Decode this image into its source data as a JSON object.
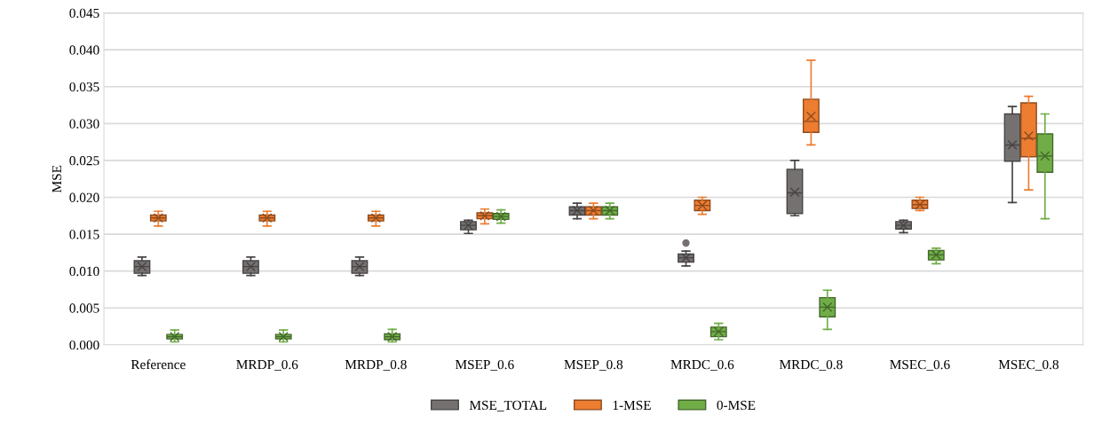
{
  "chart_data": {
    "type": "box",
    "ylabel": "MSE",
    "categories": [
      "Reference",
      "MRDP_0.6",
      "MRDP_0.8",
      "MSEP_0.6",
      "MSEP_0.8",
      "MRDC_0.6",
      "MRDC_0.8",
      "MSEC_0.6",
      "MSEC_0.8"
    ],
    "series": [
      {
        "name": "MSE_TOTAL",
        "color": "#767171",
        "boxes": [
          {
            "low": 0.0094,
            "q1": 0.0097,
            "median": 0.0106,
            "q3": 0.0114,
            "high": 0.0119,
            "mean": 0.0106
          },
          {
            "low": 0.0094,
            "q1": 0.0097,
            "median": 0.0106,
            "q3": 0.0114,
            "high": 0.0119,
            "mean": 0.0106
          },
          {
            "low": 0.0094,
            "q1": 0.0097,
            "median": 0.0106,
            "q3": 0.0114,
            "high": 0.0119,
            "mean": 0.0106
          },
          {
            "low": 0.0151,
            "q1": 0.0156,
            "median": 0.0162,
            "q3": 0.0167,
            "high": 0.0169,
            "mean": 0.0162
          },
          {
            "low": 0.0171,
            "q1": 0.0176,
            "median": 0.0182,
            "q3": 0.0187,
            "high": 0.0192,
            "mean": 0.0182
          },
          {
            "low": 0.0107,
            "q1": 0.0112,
            "median": 0.0118,
            "q3": 0.0123,
            "high": 0.0127,
            "mean": 0.0118,
            "outliers": [
              0.0138
            ]
          },
          {
            "low": 0.0175,
            "q1": 0.0178,
            "median": 0.0206,
            "q3": 0.0238,
            "high": 0.025,
            "mean": 0.0207
          },
          {
            "low": 0.0152,
            "q1": 0.0157,
            "median": 0.0162,
            "q3": 0.0167,
            "high": 0.0169,
            "mean": 0.0162
          },
          {
            "low": 0.0193,
            "q1": 0.0249,
            "median": 0.0271,
            "q3": 0.0313,
            "high": 0.0323,
            "mean": 0.0271
          }
        ]
      },
      {
        "name": "1-MSE",
        "color": "#ed7d31",
        "boxes": [
          {
            "low": 0.0161,
            "q1": 0.0168,
            "median": 0.0172,
            "q3": 0.0176,
            "high": 0.0181,
            "mean": 0.0172
          },
          {
            "low": 0.0161,
            "q1": 0.0168,
            "median": 0.0172,
            "q3": 0.0176,
            "high": 0.0181,
            "mean": 0.0172
          },
          {
            "low": 0.0161,
            "q1": 0.0168,
            "median": 0.0172,
            "q3": 0.0176,
            "high": 0.0181,
            "mean": 0.0172
          },
          {
            "low": 0.0164,
            "q1": 0.0171,
            "median": 0.0175,
            "q3": 0.0179,
            "high": 0.0184,
            "mean": 0.0175
          },
          {
            "low": 0.0171,
            "q1": 0.0176,
            "median": 0.0182,
            "q3": 0.0187,
            "high": 0.0192,
            "mean": 0.0182
          },
          {
            "low": 0.0177,
            "q1": 0.0182,
            "median": 0.0189,
            "q3": 0.0196,
            "high": 0.02,
            "mean": 0.0189
          },
          {
            "low": 0.0271,
            "q1": 0.0288,
            "median": 0.0303,
            "q3": 0.0333,
            "high": 0.0386,
            "mean": 0.031
          },
          {
            "low": 0.0182,
            "q1": 0.0185,
            "median": 0.019,
            "q3": 0.0196,
            "high": 0.02,
            "mean": 0.019
          },
          {
            "low": 0.021,
            "q1": 0.0255,
            "median": 0.028,
            "q3": 0.0328,
            "high": 0.0337,
            "mean": 0.0283
          }
        ]
      },
      {
        "name": "0-MSE",
        "color": "#70ad47",
        "boxes": [
          {
            "low": 0.0004,
            "q1": 0.0008,
            "median": 0.0011,
            "q3": 0.0014,
            "high": 0.002,
            "mean": 0.0011
          },
          {
            "low": 0.0004,
            "q1": 0.0008,
            "median": 0.0011,
            "q3": 0.0014,
            "high": 0.002,
            "mean": 0.0011
          },
          {
            "low": 0.0004,
            "q1": 0.0007,
            "median": 0.0011,
            "q3": 0.0015,
            "high": 0.0021,
            "mean": 0.0011
          },
          {
            "low": 0.0165,
            "q1": 0.017,
            "median": 0.0174,
            "q3": 0.0178,
            "high": 0.0183,
            "mean": 0.0174
          },
          {
            "low": 0.0171,
            "q1": 0.0176,
            "median": 0.0182,
            "q3": 0.0187,
            "high": 0.0192,
            "mean": 0.0182
          },
          {
            "low": 0.0007,
            "q1": 0.0011,
            "median": 0.0018,
            "q3": 0.0024,
            "high": 0.0029,
            "mean": 0.0018
          },
          {
            "low": 0.0021,
            "q1": 0.0038,
            "median": 0.0051,
            "q3": 0.0064,
            "high": 0.0074,
            "mean": 0.0051
          },
          {
            "low": 0.011,
            "q1": 0.0115,
            "median": 0.0122,
            "q3": 0.0128,
            "high": 0.0131,
            "mean": 0.0122
          },
          {
            "low": 0.0171,
            "q1": 0.0234,
            "median": 0.0256,
            "q3": 0.0286,
            "high": 0.0313,
            "mean": 0.0256
          }
        ]
      }
    ],
    "ylim": [
      0,
      0.045
    ],
    "yticks": [
      {
        "value": 0,
        "label": "0.000"
      },
      {
        "value": 0.005,
        "label": "0.005"
      },
      {
        "value": 0.01,
        "label": "0.010"
      },
      {
        "value": 0.015,
        "label": "0.015"
      },
      {
        "value": 0.02,
        "label": "0.020"
      },
      {
        "value": 0.025,
        "label": "0.025"
      },
      {
        "value": 0.03,
        "label": "0.030"
      },
      {
        "value": 0.035,
        "label": "0.035"
      },
      {
        "value": 0.04,
        "label": "0.040"
      },
      {
        "value": 0.045,
        "label": "0.045"
      }
    ],
    "grid": "y",
    "legend": "bottom"
  }
}
